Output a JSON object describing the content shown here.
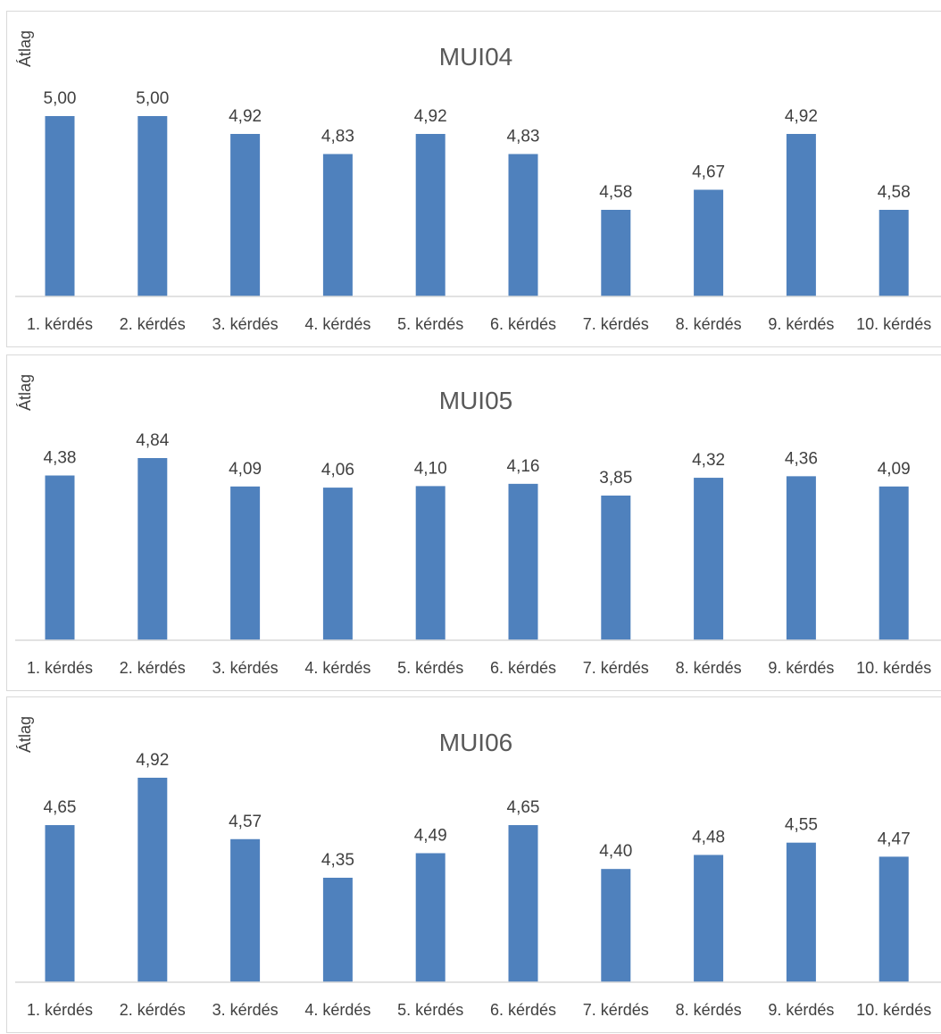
{
  "chart_data": [
    {
      "type": "bar",
      "title": "MUI04",
      "ylabel": "Átlag",
      "xlabel": "",
      "categories": [
        "1. kérdés",
        "2. kérdés",
        "3. kérdés",
        "4. kérdés",
        "5. kérdés",
        "6. kérdés",
        "7. kérdés",
        "8. kérdés",
        "9. kérdés",
        "10. kérdés"
      ],
      "values": [
        5.0,
        5.0,
        4.92,
        4.83,
        4.92,
        4.83,
        4.58,
        4.67,
        4.92,
        4.58
      ],
      "value_labels": [
        "5,00",
        "5,00",
        "4,92",
        "4,83",
        "4,92",
        "4,83",
        "4,58",
        "4,67",
        "4,92",
        "4,58"
      ],
      "color": "#4f81bd",
      "grid": false,
      "legend": "none"
    },
    {
      "type": "bar",
      "title": "MUI05",
      "ylabel": "Átlag",
      "xlabel": "",
      "categories": [
        "1. kérdés",
        "2. kérdés",
        "3. kérdés",
        "4. kérdés",
        "5. kérdés",
        "6. kérdés",
        "7. kérdés",
        "8. kérdés",
        "9. kérdés",
        "10. kérdés"
      ],
      "values": [
        4.38,
        4.84,
        4.09,
        4.06,
        4.1,
        4.16,
        3.85,
        4.32,
        4.36,
        4.09
      ],
      "value_labels": [
        "4,38",
        "4,84",
        "4,09",
        "4,06",
        "4,10",
        "4,16",
        "3,85",
        "4,32",
        "4,36",
        "4,09"
      ],
      "color": "#4f81bd",
      "grid": false,
      "legend": "none"
    },
    {
      "type": "bar",
      "title": "MUI06",
      "ylabel": "Átlag",
      "xlabel": "",
      "categories": [
        "1. kérdés",
        "2. kérdés",
        "3. kérdés",
        "4. kérdés",
        "5. kérdés",
        "6. kérdés",
        "7. kérdés",
        "8. kérdés",
        "9. kérdés",
        "10. kérdés"
      ],
      "values": [
        4.65,
        4.92,
        4.57,
        4.35,
        4.49,
        4.65,
        4.4,
        4.48,
        4.55,
        4.47
      ],
      "value_labels": [
        "4,65",
        "4,92",
        "4,57",
        "4,35",
        "4,49",
        "4,65",
        "4,40",
        "4,48",
        "4,55",
        "4,47"
      ],
      "color": "#4f81bd",
      "grid": false,
      "legend": "none"
    }
  ]
}
